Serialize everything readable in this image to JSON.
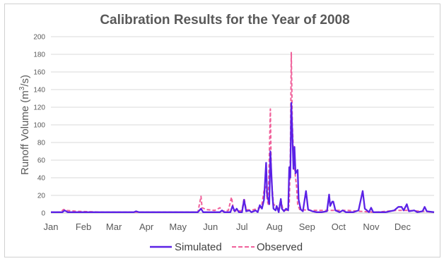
{
  "chart_data": {
    "type": "line",
    "title": "Calibration Results for the Year of 2008",
    "ylabel": "Runoff Volume (m³/s)",
    "ylabel_main": "Runoff Volume (m",
    "ylabel_sup": "3",
    "ylabel_end": "/s)",
    "xlabel": "",
    "ylim": [
      0,
      200
    ],
    "yticks": [
      "0",
      "20",
      "40",
      "60",
      "80",
      "100",
      "120",
      "140",
      "160",
      "180",
      "200"
    ],
    "xlim": [
      "2008-01-01",
      "2008-12-31"
    ],
    "xticks": [
      {
        "label": "Jan",
        "date": "2008-01-01"
      },
      {
        "label": "Feb",
        "date": "2008-02-01"
      },
      {
        "label": "Mar",
        "date": "2008-03-01"
      },
      {
        "label": "Apr",
        "date": "2008-04-01"
      },
      {
        "label": "May",
        "date": "2008-05-01"
      },
      {
        "label": "Jun",
        "date": "2008-06-01"
      },
      {
        "label": "Jul",
        "date": "2008-07-01"
      },
      {
        "label": "Aug",
        "date": "2008-08-01"
      },
      {
        "label": "Sep",
        "date": "2008-09-01"
      },
      {
        "label": "Oct",
        "date": "2008-10-01"
      },
      {
        "label": "Nov",
        "date": "2008-11-01"
      },
      {
        "label": "Dec",
        "date": "2008-12-01"
      }
    ],
    "grid": "horizontal",
    "legend_position": "bottom",
    "series": [
      {
        "name": "Simulated",
        "color": "#5b21e6",
        "style": "solid",
        "points": [
          [
            "2008-01-01",
            1
          ],
          [
            "2008-01-12",
            1
          ],
          [
            "2008-01-14",
            3
          ],
          [
            "2008-01-17",
            1
          ],
          [
            "2008-02-10",
            1
          ],
          [
            "2008-03-20",
            1
          ],
          [
            "2008-03-22",
            2
          ],
          [
            "2008-03-25",
            1
          ],
          [
            "2008-04-20",
            1
          ],
          [
            "2008-05-20",
            1
          ],
          [
            "2008-05-23",
            5
          ],
          [
            "2008-05-25",
            1
          ],
          [
            "2008-06-10",
            1
          ],
          [
            "2008-06-12",
            3
          ],
          [
            "2008-06-14",
            1
          ],
          [
            "2008-06-20",
            1
          ],
          [
            "2008-06-22",
            8
          ],
          [
            "2008-06-24",
            2
          ],
          [
            "2008-06-26",
            5
          ],
          [
            "2008-06-28",
            1
          ],
          [
            "2008-07-01",
            1
          ],
          [
            "2008-07-03",
            15
          ],
          [
            "2008-07-05",
            2
          ],
          [
            "2008-07-08",
            3
          ],
          [
            "2008-07-10",
            1
          ],
          [
            "2008-07-14",
            3
          ],
          [
            "2008-07-16",
            1
          ],
          [
            "2008-07-18",
            9
          ],
          [
            "2008-07-20",
            5
          ],
          [
            "2008-07-22",
            15
          ],
          [
            "2008-07-24",
            57
          ],
          [
            "2008-07-25",
            20
          ],
          [
            "2008-07-27",
            10
          ],
          [
            "2008-07-28",
            70
          ],
          [
            "2008-07-30",
            20
          ],
          [
            "2008-07-31",
            5
          ],
          [
            "2008-08-02",
            3
          ],
          [
            "2008-08-03",
            8
          ],
          [
            "2008-08-05",
            1
          ],
          [
            "2008-08-07",
            16
          ],
          [
            "2008-08-08",
            5
          ],
          [
            "2008-08-10",
            2
          ],
          [
            "2008-08-12",
            5
          ],
          [
            "2008-08-14",
            3
          ],
          [
            "2008-08-15",
            52
          ],
          [
            "2008-08-16",
            40
          ],
          [
            "2008-08-17",
            125
          ],
          [
            "2008-08-18",
            90
          ],
          [
            "2008-08-19",
            50
          ],
          [
            "2008-08-20",
            75
          ],
          [
            "2008-08-21",
            45
          ],
          [
            "2008-08-23",
            49
          ],
          [
            "2008-08-24",
            15
          ],
          [
            "2008-08-26",
            4
          ],
          [
            "2008-08-28",
            2
          ],
          [
            "2008-08-31",
            25
          ],
          [
            "2008-09-02",
            4
          ],
          [
            "2008-09-06",
            2
          ],
          [
            "2008-09-10",
            1
          ],
          [
            "2008-09-15",
            1
          ],
          [
            "2008-09-20",
            2
          ],
          [
            "2008-09-22",
            21
          ],
          [
            "2008-09-23",
            8
          ],
          [
            "2008-09-25",
            13
          ],
          [
            "2008-09-26",
            13
          ],
          [
            "2008-09-28",
            3
          ],
          [
            "2008-10-02",
            1
          ],
          [
            "2008-10-05",
            3
          ],
          [
            "2008-10-08",
            1
          ],
          [
            "2008-10-15",
            1
          ],
          [
            "2008-10-20",
            3
          ],
          [
            "2008-10-24",
            25
          ],
          [
            "2008-10-26",
            5
          ],
          [
            "2008-10-30",
            1
          ],
          [
            "2008-11-01",
            6
          ],
          [
            "2008-11-03",
            1
          ],
          [
            "2008-11-15",
            1
          ],
          [
            "2008-11-23",
            3
          ],
          [
            "2008-11-27",
            7
          ],
          [
            "2008-11-30",
            7
          ],
          [
            "2008-12-02",
            3
          ],
          [
            "2008-12-05",
            10
          ],
          [
            "2008-12-07",
            2
          ],
          [
            "2008-12-12",
            3
          ],
          [
            "2008-12-15",
            1
          ],
          [
            "2008-12-20",
            2
          ],
          [
            "2008-12-22",
            7
          ],
          [
            "2008-12-24",
            2
          ],
          [
            "2008-12-31",
            1
          ]
        ]
      },
      {
        "name": "Observed",
        "color": "#f0609a",
        "style": "dashed",
        "points": [
          [
            "2008-01-01",
            1
          ],
          [
            "2008-01-10",
            1
          ],
          [
            "2008-01-13",
            4
          ],
          [
            "2008-01-16",
            3
          ],
          [
            "2008-01-25",
            2
          ],
          [
            "2008-02-20",
            1
          ],
          [
            "2008-04-15",
            1
          ],
          [
            "2008-05-20",
            1
          ],
          [
            "2008-05-23",
            19
          ],
          [
            "2008-05-24",
            6
          ],
          [
            "2008-05-28",
            4
          ],
          [
            "2008-06-05",
            3
          ],
          [
            "2008-06-10",
            6
          ],
          [
            "2008-06-12",
            2
          ],
          [
            "2008-06-18",
            3
          ],
          [
            "2008-06-21",
            18
          ],
          [
            "2008-06-23",
            3
          ],
          [
            "2008-06-26",
            2
          ],
          [
            "2008-07-01",
            3
          ],
          [
            "2008-07-03",
            17
          ],
          [
            "2008-07-05",
            4
          ],
          [
            "2008-07-10",
            3
          ],
          [
            "2008-07-15",
            5
          ],
          [
            "2008-07-18",
            6
          ],
          [
            "2008-07-20",
            10
          ],
          [
            "2008-07-22",
            25
          ],
          [
            "2008-07-24",
            30
          ],
          [
            "2008-07-25",
            15
          ],
          [
            "2008-07-26",
            10
          ],
          [
            "2008-07-28",
            118
          ],
          [
            "2008-07-29",
            40
          ],
          [
            "2008-07-31",
            10
          ],
          [
            "2008-08-02",
            8
          ],
          [
            "2008-08-05",
            5
          ],
          [
            "2008-08-07",
            15
          ],
          [
            "2008-08-09",
            4
          ],
          [
            "2008-08-12",
            3
          ],
          [
            "2008-08-14",
            5
          ],
          [
            "2008-08-15",
            10
          ],
          [
            "2008-08-16",
            60
          ],
          [
            "2008-08-17",
            182
          ],
          [
            "2008-08-18",
            100
          ],
          [
            "2008-08-19",
            70
          ],
          [
            "2008-08-20",
            52
          ],
          [
            "2008-08-21",
            40
          ],
          [
            "2008-08-22",
            30
          ],
          [
            "2008-08-23",
            10
          ],
          [
            "2008-08-25",
            4
          ],
          [
            "2008-09-05",
            3
          ],
          [
            "2008-09-15",
            3
          ],
          [
            "2008-10-10",
            3
          ],
          [
            "2008-10-20",
            2
          ],
          [
            "2008-11-05",
            1
          ],
          [
            "2008-11-25",
            3
          ],
          [
            "2008-12-05",
            3
          ],
          [
            "2008-12-20",
            2
          ],
          [
            "2008-12-31",
            1
          ]
        ]
      }
    ]
  }
}
